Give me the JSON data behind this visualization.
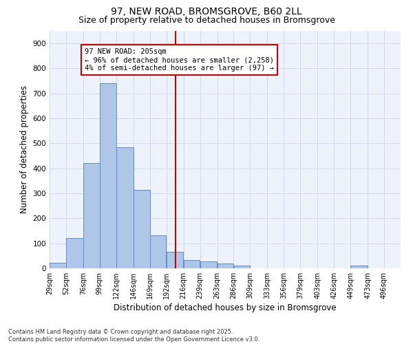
{
  "title": "97, NEW ROAD, BROMSGROVE, B60 2LL",
  "subtitle": "Size of property relative to detached houses in Bromsgrove",
  "xlabel": "Distribution of detached houses by size in Bromsgrove",
  "ylabel": "Number of detached properties",
  "bar_values": [
    22,
    122,
    422,
    740,
    485,
    315,
    133,
    65,
    32,
    28,
    18,
    10,
    0,
    0,
    0,
    0,
    0,
    0,
    10,
    0,
    0
  ],
  "bin_edges": [
    29,
    52,
    76,
    99,
    122,
    146,
    169,
    192,
    216,
    239,
    263,
    286,
    309,
    333,
    356,
    379,
    403,
    426,
    449,
    473,
    496,
    519
  ],
  "tick_labels": [
    "29sqm",
    "52sqm",
    "76sqm",
    "99sqm",
    "122sqm",
    "146sqm",
    "169sqm",
    "192sqm",
    "216sqm",
    "239sqm",
    "263sqm",
    "286sqm",
    "309sqm",
    "333sqm",
    "356sqm",
    "379sqm",
    "403sqm",
    "426sqm",
    "449sqm",
    "473sqm",
    "496sqm"
  ],
  "vline_x": 205,
  "ylim": [
    0,
    950
  ],
  "yticks": [
    0,
    100,
    200,
    300,
    400,
    500,
    600,
    700,
    800,
    900
  ],
  "bar_color": "#aec6e8",
  "bar_edge_color": "#5b8dc8",
  "vline_color": "#cc0000",
  "grid_color": "#d0d8ea",
  "bg_color": "#eef2fb",
  "annotation_text": "97 NEW ROAD: 205sqm\n← 96% of detached houses are smaller (2,258)\n4% of semi-detached houses are larger (97) →",
  "footer_line1": "Contains HM Land Registry data © Crown copyright and database right 2025.",
  "footer_line2": "Contains public sector information licensed under the Open Government Licence v3.0.",
  "title_fontsize": 10,
  "subtitle_fontsize": 9,
  "axis_label_fontsize": 8.5,
  "tick_fontsize": 7,
  "annotation_fontsize": 7.5,
  "footer_fontsize": 6
}
